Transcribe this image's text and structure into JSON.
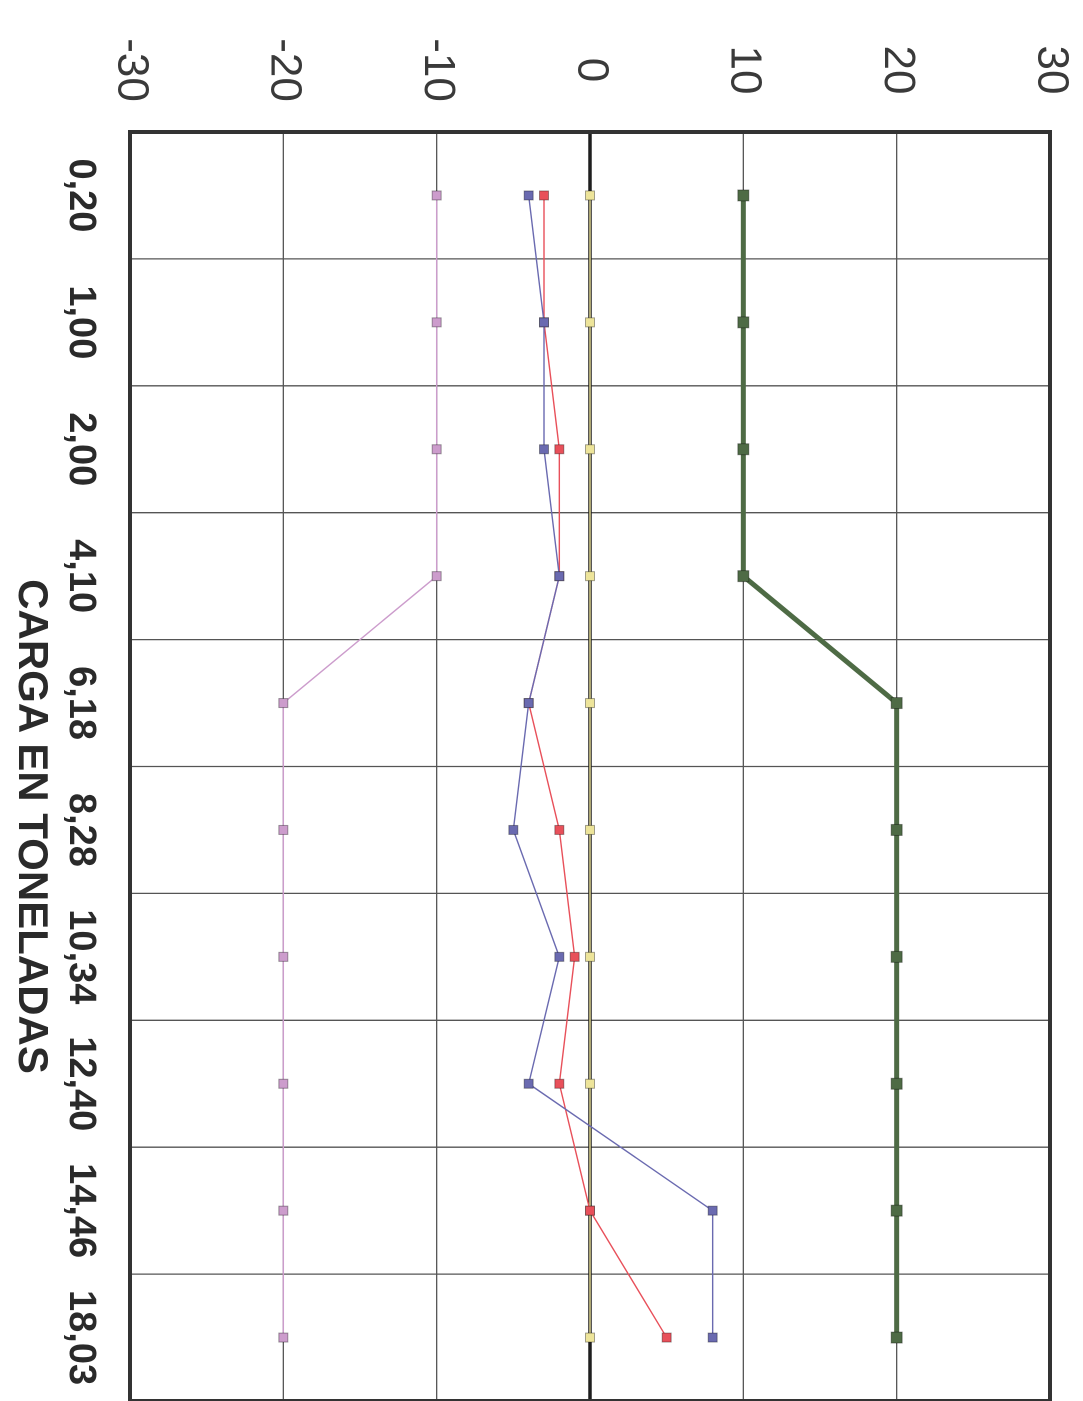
{
  "chart_data": {
    "type": "line",
    "title": "",
    "xlabel": "CARGA EN TONELADAS",
    "ylabel": "",
    "categories": [
      "0,20",
      "1,00",
      "2,00",
      "4,10",
      "6,18",
      "8,28",
      "10,34",
      "12,40",
      "14,46",
      "18,03"
    ],
    "y_ticks": [
      "-30",
      "-20",
      "-10",
      "0",
      "10",
      "20",
      "30"
    ],
    "ylim": [
      -30,
      30
    ],
    "grid": true,
    "orientation": "rotated 90° clockwise",
    "series": [
      {
        "color": "#4e6b45",
        "values": [
          10,
          10,
          10,
          10,
          20,
          20,
          20,
          20,
          20,
          20
        ]
      },
      {
        "color": "#cc9ccc",
        "values": [
          -10,
          -10,
          -10,
          -10,
          -20,
          -20,
          -20,
          -20,
          -20,
          -20
        ]
      },
      {
        "color": "#ede49a",
        "values": [
          0,
          0,
          0,
          0,
          0,
          0,
          0,
          0,
          0,
          0
        ]
      },
      {
        "color": "#e8505a",
        "values": [
          -3,
          -3,
          -2,
          -2,
          -4,
          -2,
          -1,
          -2,
          0,
          5
        ]
      },
      {
        "color": "#6a6ab0",
        "values": [
          -4,
          -3,
          -3,
          -2,
          -4,
          -5,
          -2,
          -4,
          8,
          8
        ]
      }
    ]
  }
}
